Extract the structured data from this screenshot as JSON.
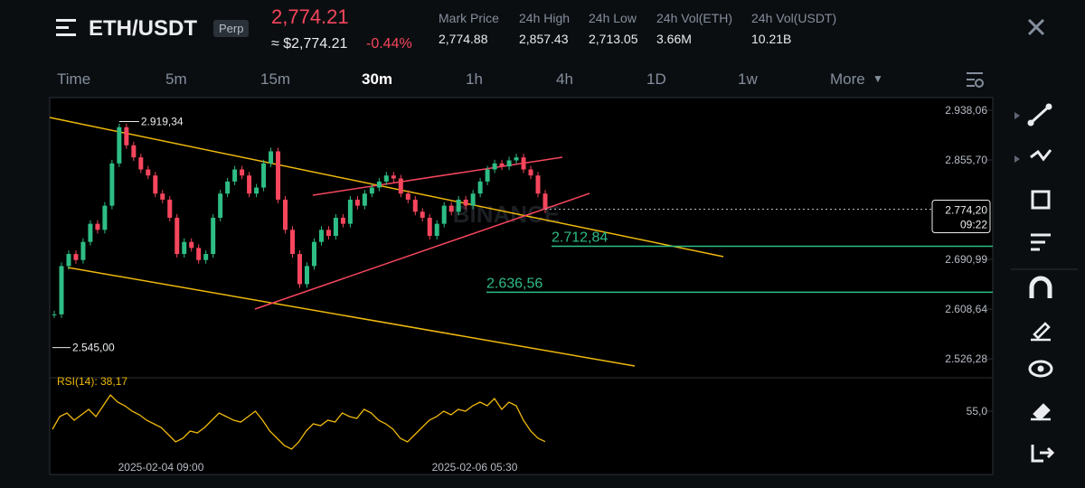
{
  "header": {
    "symbol": "ETH/USDT",
    "badge": "Perp",
    "last_price": "2,774.21",
    "usd_price": "≈ $2,774.21",
    "change": "-0.44%",
    "stats": [
      {
        "label": "Mark Price",
        "value": "2,774.88"
      },
      {
        "label": "24h High",
        "value": "2,857.43"
      },
      {
        "label": "24h Low",
        "value": "2,713.05"
      },
      {
        "label": "24h Vol(ETH)",
        "value": "3.66M"
      },
      {
        "label": "24h Vol(USDT)",
        "value": "10.21B"
      }
    ]
  },
  "tabs": [
    "Time",
    "5m",
    "15m",
    "30m",
    "1h",
    "4h",
    "1D",
    "1w",
    "More"
  ],
  "active_tab": 3,
  "chart": {
    "watermark": "BINANCE",
    "price_ylim": [
      2507,
      2959
    ],
    "price_ticks": [
      {
        "value": 2938.06,
        "label": "2.938,06"
      },
      {
        "value": 2855.7,
        "label": "2.855,70"
      },
      {
        "value": 2690.99,
        "label": "2.690,99"
      },
      {
        "value": 2608.64,
        "label": "2.608,64"
      },
      {
        "value": 2526.28,
        "label": "2.526,28"
      }
    ],
    "current_price": {
      "value": 2774.2,
      "label": "2.774,20"
    },
    "countdown": "09:22",
    "high_marker": {
      "value": 2919.34,
      "label": "2.919,34"
    },
    "low_marker": {
      "value": 2545.0,
      "label": "2.545,00"
    },
    "levels": [
      {
        "value": 2712.84,
        "label": "2.712,84"
      },
      {
        "value": 2636.56,
        "label": "2.636,56"
      }
    ],
    "closes": [
      2600,
      2680,
      2700,
      2690,
      2720,
      2750,
      2740,
      2780,
      2850,
      2910,
      2880,
      2860,
      2840,
      2830,
      2800,
      2790,
      2760,
      2700,
      2720,
      2710,
      2690,
      2700,
      2760,
      2800,
      2820,
      2840,
      2830,
      2800,
      2810,
      2850,
      2870,
      2790,
      2740,
      2700,
      2650,
      2680,
      2720,
      2740,
      2730,
      2760,
      2750,
      2790,
      2780,
      2800,
      2810,
      2820,
      2830,
      2825,
      2800,
      2790,
      2770,
      2760,
      2730,
      2750,
      2780,
      2770,
      2790,
      2780,
      2800,
      2820,
      2840,
      2850,
      2845,
      2855,
      2860,
      2840,
      2830,
      2800,
      2774
    ],
    "rsi": {
      "label": "RSI(14): 38,17",
      "ylim": [
        25,
        70
      ],
      "ticks": [
        {
          "value": 55,
          "label": "55,0"
        }
      ],
      "values": [
        45,
        52,
        54,
        50,
        53,
        56,
        52,
        58,
        64,
        60,
        58,
        55,
        53,
        50,
        48,
        46,
        42,
        38,
        40,
        44,
        43,
        46,
        50,
        54,
        52,
        50,
        49,
        52,
        55,
        50,
        44,
        40,
        36,
        34,
        38,
        44,
        48,
        47,
        50,
        49,
        54,
        52,
        51,
        56,
        54,
        50,
        48,
        45,
        40,
        38,
        42,
        46,
        50,
        52,
        55,
        53,
        56,
        55,
        58,
        60,
        58,
        62,
        56,
        60,
        58,
        50,
        44,
        40,
        38.17
      ]
    },
    "dates": [
      "2025-02-04 09:00",
      "2025-02-06 05:30"
    ]
  }
}
